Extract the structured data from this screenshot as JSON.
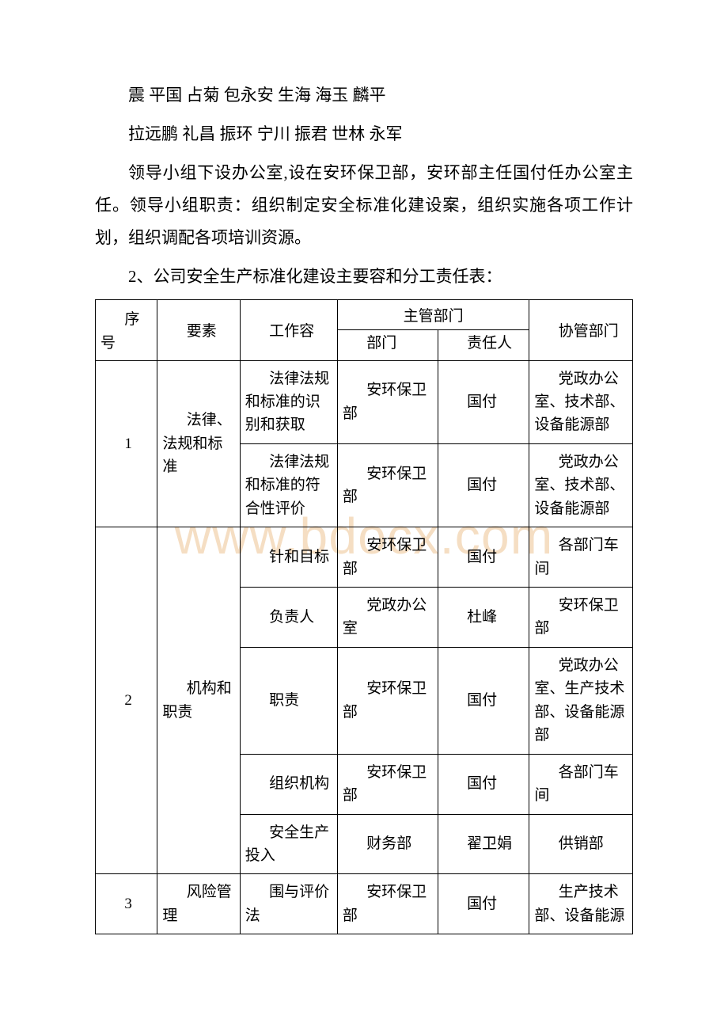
{
  "paragraphs": {
    "p1": "震 平国 占菊 包永安 生海 海玉 麟平",
    "p2": "拉远鹏 礼昌 振环 宁川 振君 世林 永军",
    "p3": "领导小组下设办公室,设在安环保卫部，安环部主任国付任办公室主任。领导小组职责：组织制定安全标准化建设案，组织实施各项工作计划，组织调配各项培训资源。",
    "p4": "2、公司安全生产标准化建设主要容和分工责任表："
  },
  "watermark": "www.bdocx.com",
  "table": {
    "header": {
      "seq": "序号",
      "element": "要素",
      "work": "工作容",
      "supervise": "主管部门",
      "dept": "部门",
      "resp": "责任人",
      "co": "协管部门"
    },
    "rows": [
      {
        "seq": "1",
        "element": "法律、法规和标准",
        "sub": [
          {
            "work": "法律法规和标准的识别和获取",
            "dept": "安环保卫部",
            "resp": "国付",
            "co": "党政办公室、技术部、设备能源部"
          },
          {
            "work": "法律法规和标准的符合性评价",
            "dept": "安环保卫部",
            "resp": "国付",
            "co": "党政办公室、技术部、设备能源部"
          }
        ]
      },
      {
        "seq": "2",
        "element": "机构和职责",
        "sub": [
          {
            "work": "针和目标",
            "dept": "安环保卫部",
            "resp": "国付",
            "co": "各部门车间"
          },
          {
            "work": "负责人",
            "dept": "党政办公室",
            "resp": "杜峰",
            "co": "安环保卫部"
          },
          {
            "work": "职责",
            "dept": "安环保卫部",
            "resp": "国付",
            "co": "党政办公室、生产技术部、设备能源部"
          },
          {
            "work": "组织机构",
            "dept": "安环保卫部",
            "resp": "国付",
            "co": "各部门车间"
          },
          {
            "work": "安全生产投入",
            "dept": "财务部",
            "resp": "翟卫娟",
            "co": "供销部"
          }
        ]
      },
      {
        "seq": "3",
        "element": "风险管理",
        "sub": [
          {
            "work": "围与评价法",
            "dept": "安环保卫部",
            "resp": "国付",
            "co": "生产技术部、设备能源"
          }
        ]
      }
    ]
  }
}
